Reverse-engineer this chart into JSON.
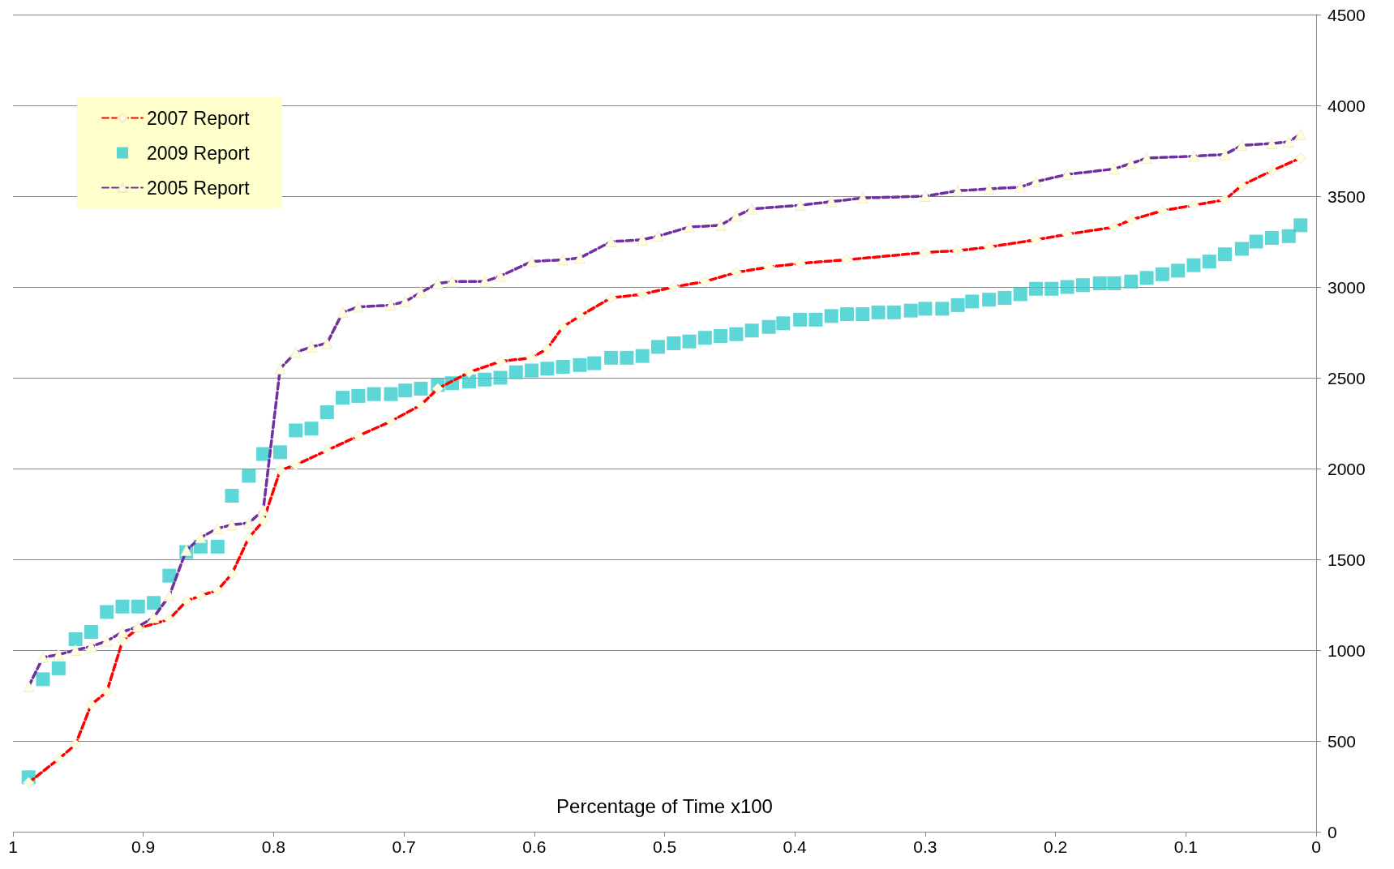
{
  "chart_data": {
    "type": "line",
    "xlabel": "Percentage of Time x100",
    "xlim": [
      1,
      0
    ],
    "xticks": [
      1,
      0.9,
      0.8,
      0.7,
      0.6,
      0.5,
      0.4,
      0.3,
      0.2,
      0.1,
      0
    ],
    "ylim": [
      0,
      4500
    ],
    "yticks": [
      0,
      500,
      1000,
      1500,
      2000,
      2500,
      3000,
      3500,
      4000,
      4500
    ],
    "grid": "y",
    "legend": "top left",
    "series": [
      {
        "name": "2007 Report",
        "color": "#ff0000",
        "line_style": "dashed",
        "marker": "diamond",
        "x": [
          0.988,
          0.965,
          0.952,
          0.94,
          0.928,
          0.916,
          0.904,
          0.88,
          0.867,
          0.856,
          0.843,
          0.832,
          0.819,
          0.808,
          0.795,
          0.783,
          0.759,
          0.735,
          0.71,
          0.687,
          0.674,
          0.65,
          0.626,
          0.602,
          0.59,
          0.578,
          0.565,
          0.541,
          0.517,
          0.493,
          0.469,
          0.445,
          0.42,
          0.396,
          0.36,
          0.3,
          0.275,
          0.251,
          0.215,
          0.191,
          0.155,
          0.142,
          0.118,
          0.094,
          0.07,
          0.057,
          0.034,
          0.012
        ],
        "values": [
          270,
          400,
          480,
          700,
          770,
          1050,
          1120,
          1170,
          1270,
          1300,
          1330,
          1420,
          1620,
          1710,
          1990,
          2020,
          2100,
          2180,
          2260,
          2350,
          2440,
          2530,
          2590,
          2610,
          2660,
          2780,
          2840,
          2940,
          2960,
          3000,
          3030,
          3080,
          3110,
          3130,
          3150,
          3190,
          3200,
          3220,
          3260,
          3290,
          3330,
          3370,
          3420,
          3450,
          3480,
          3560,
          3640,
          3710
        ]
      },
      {
        "name": "2009 Report",
        "type": "scatter",
        "color": "#33cccc",
        "marker": "square",
        "x": [
          0.988,
          0.977,
          0.965,
          0.952,
          0.94,
          0.928,
          0.916,
          0.904,
          0.892,
          0.88,
          0.867,
          0.856,
          0.843,
          0.832,
          0.819,
          0.808,
          0.795,
          0.783,
          0.771,
          0.759,
          0.747,
          0.735,
          0.723,
          0.71,
          0.699,
          0.687,
          0.674,
          0.663,
          0.65,
          0.638,
          0.626,
          0.614,
          0.602,
          0.59,
          0.578,
          0.565,
          0.554,
          0.541,
          0.529,
          0.517,
          0.505,
          0.493,
          0.481,
          0.469,
          0.457,
          0.445,
          0.433,
          0.42,
          0.409,
          0.396,
          0.384,
          0.372,
          0.36,
          0.348,
          0.336,
          0.324,
          0.311,
          0.3,
          0.287,
          0.275,
          0.264,
          0.251,
          0.239,
          0.227,
          0.215,
          0.203,
          0.191,
          0.179,
          0.166,
          0.155,
          0.142,
          0.13,
          0.118,
          0.106,
          0.094,
          0.082,
          0.07,
          0.057,
          0.046,
          0.034,
          0.021,
          0.012
        ],
        "values": [
          300,
          840,
          900,
          1060,
          1100,
          1210,
          1240,
          1240,
          1260,
          1410,
          1540,
          1570,
          1570,
          1850,
          1960,
          2080,
          2090,
          2210,
          2220,
          2310,
          2390,
          2400,
          2410,
          2410,
          2430,
          2440,
          2460,
          2470,
          2480,
          2490,
          2500,
          2530,
          2540,
          2550,
          2560,
          2570,
          2580,
          2610,
          2610,
          2620,
          2670,
          2690,
          2700,
          2720,
          2730,
          2740,
          2760,
          2780,
          2800,
          2820,
          2820,
          2840,
          2850,
          2850,
          2860,
          2860,
          2870,
          2880,
          2880,
          2900,
          2920,
          2930,
          2940,
          2960,
          2990,
          2990,
          3000,
          3010,
          3020,
          3020,
          3030,
          3050,
          3070,
          3090,
          3120,
          3140,
          3180,
          3210,
          3250,
          3270,
          3280,
          3340
        ]
      },
      {
        "name": "2005 Report",
        "color": "#7030a0",
        "line_style": "dashed",
        "marker": "triangle",
        "x": [
          0.988,
          0.977,
          0.965,
          0.952,
          0.94,
          0.928,
          0.916,
          0.904,
          0.892,
          0.88,
          0.867,
          0.856,
          0.843,
          0.832,
          0.819,
          0.808,
          0.795,
          0.783,
          0.771,
          0.759,
          0.747,
          0.735,
          0.71,
          0.699,
          0.687,
          0.674,
          0.663,
          0.638,
          0.626,
          0.602,
          0.578,
          0.565,
          0.541,
          0.517,
          0.505,
          0.481,
          0.457,
          0.445,
          0.433,
          0.396,
          0.372,
          0.348,
          0.3,
          0.275,
          0.251,
          0.227,
          0.215,
          0.191,
          0.155,
          0.142,
          0.13,
          0.094,
          0.07,
          0.057,
          0.034,
          0.021,
          0.012
        ],
        "values": [
          800,
          960,
          975,
          1000,
          1020,
          1050,
          1100,
          1130,
          1180,
          1300,
          1550,
          1620,
          1670,
          1690,
          1700,
          1770,
          2550,
          2640,
          2670,
          2690,
          2860,
          2890,
          2900,
          2920,
          2970,
          3020,
          3030,
          3030,
          3060,
          3140,
          3150,
          3160,
          3250,
          3260,
          3280,
          3330,
          3340,
          3390,
          3430,
          3450,
          3470,
          3490,
          3500,
          3530,
          3540,
          3550,
          3580,
          3620,
          3650,
          3680,
          3710,
          3720,
          3730,
          3780,
          3790,
          3800,
          3840
        ]
      }
    ]
  }
}
